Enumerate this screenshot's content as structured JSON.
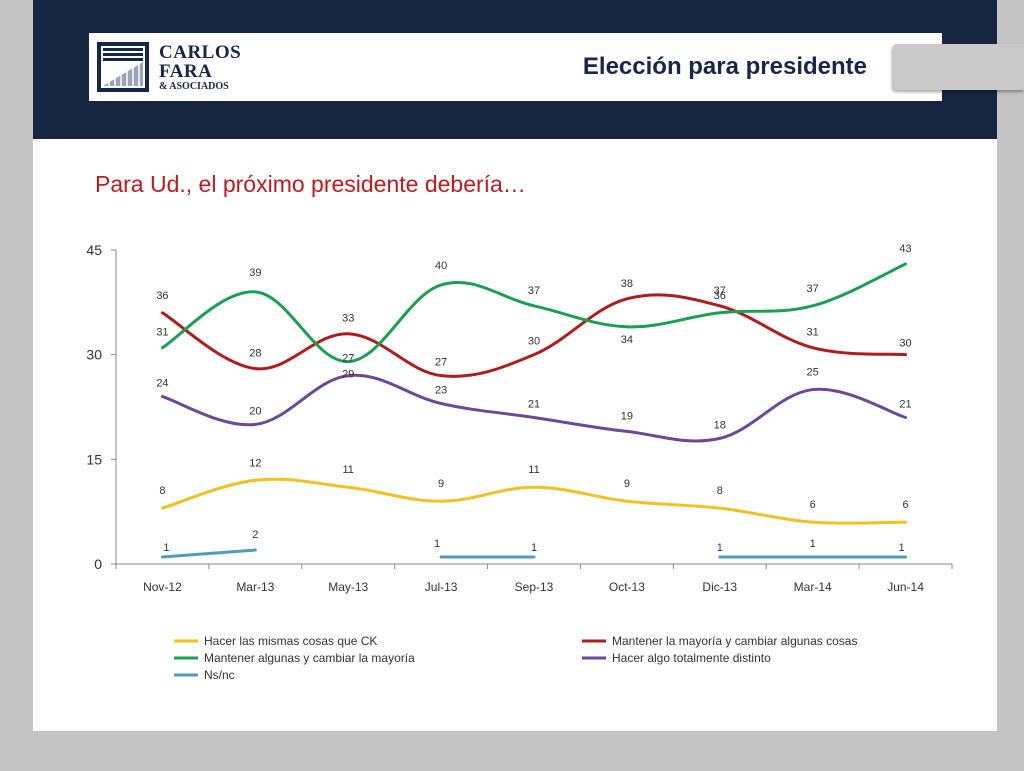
{
  "header": {
    "title": "Elección para presidente",
    "logo": {
      "line1": "CARLOS",
      "line2": "FARA",
      "line3": "& ASOCIADOS"
    }
  },
  "subtitle": "Para Ud., el próximo presidente debería…",
  "colors": {
    "header_band": "#162640",
    "subtitle": "#c0191e",
    "background": "#c4c4c4"
  },
  "chart_data": {
    "type": "line",
    "title": "",
    "xlabel": "",
    "ylabel": "",
    "categories": [
      "Nov-12",
      "Mar-13",
      "May-13",
      "Jul-13",
      "Sep-13",
      "Oct-13",
      "Dic-13",
      "Mar-14",
      "Jun-14"
    ],
    "ylim": [
      0,
      45
    ],
    "yticks": [
      0,
      15,
      30,
      45
    ],
    "grid": false,
    "legend": "bottom",
    "series": [
      {
        "name": "Hacer las mismas cosas que CK",
        "color": "#f2c020",
        "values": [
          8,
          12,
          11,
          9,
          11,
          9,
          8,
          6,
          6
        ]
      },
      {
        "name": "Mantener la mayoría y cambiar algunas cosas",
        "color": "#b01c1c",
        "values": [
          36,
          28,
          33,
          27,
          30,
          38,
          37,
          31,
          30
        ]
      },
      {
        "name": "Mantener algunas y cambiar la mayoría",
        "color": "#1aa050",
        "values": [
          31,
          39,
          29,
          40,
          37,
          34,
          36,
          37,
          43
        ]
      },
      {
        "name": "Hacer algo totalmente distinto",
        "color": "#6a4a98",
        "values": [
          24,
          20,
          27,
          23,
          21,
          19,
          18,
          25,
          21
        ]
      },
      {
        "name": "Ns/nc",
        "color": "#4aa0b4",
        "values": [
          1,
          2,
          null,
          1,
          1,
          null,
          1,
          1,
          1
        ]
      }
    ]
  }
}
